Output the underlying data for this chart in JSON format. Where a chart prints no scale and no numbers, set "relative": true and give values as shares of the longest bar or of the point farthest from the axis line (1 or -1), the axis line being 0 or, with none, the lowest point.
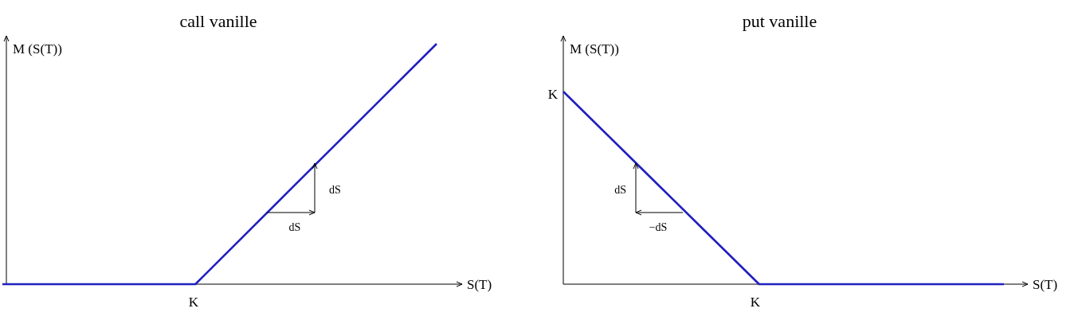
{
  "chart_data": [
    {
      "type": "line",
      "title": "call vanille",
      "xlabel": "S(T)",
      "ylabel": "M (S(T))",
      "relative": true,
      "categories": [
        null,
        null,
        null,
        null,
        null,
        null,
        null,
        null,
        null,
        null
      ],
      "series": [
        {
          "color": "#1f1fbf",
          "values": [
            0,
            0,
            0,
            0,
            0,
            0.2,
            0.4,
            0.6,
            0.8,
            1
          ]
        }
      ],
      "grid": false,
      "marker": "none",
      "line_style": "solid",
      "annotations": [
        "K",
        "dS",
        "dS"
      ]
    },
    {
      "type": "line",
      "title": "put vanille",
      "xlabel": "S(T)",
      "ylabel": "M (S(T))",
      "relative": true,
      "categories": [
        null,
        null,
        null,
        null,
        null,
        null,
        null,
        null,
        null,
        null
      ],
      "series": [
        {
          "color": "#1f1fbf",
          "values": [
            1,
            0.75,
            0.5,
            0.25,
            0,
            0,
            0,
            0,
            0,
            0
          ]
        }
      ],
      "grid": false,
      "marker": "none",
      "line_style": "solid",
      "annotations": [
        "K",
        "K",
        "dS",
        "−dS"
      ]
    }
  ]
}
